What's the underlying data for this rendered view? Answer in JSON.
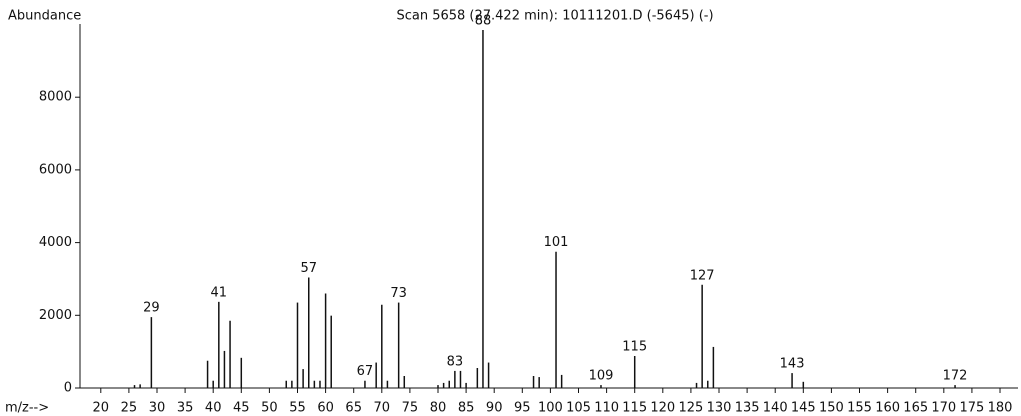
{
  "chart_data": {
    "type": "spectrum",
    "title": "Scan 5658 (27.422 min): 10111201.D (-5645) (-)",
    "y_label": "Abundance",
    "x_label": "m/z-->",
    "color": "#111111",
    "x": [
      26,
      27,
      29,
      39,
      40,
      41,
      42,
      43,
      45,
      53,
      54,
      55,
      56,
      57,
      58,
      59,
      60,
      61,
      67,
      69,
      70,
      71,
      73,
      74,
      80,
      81,
      82,
      83,
      84,
      85,
      87,
      88,
      89,
      97,
      98,
      101,
      102,
      109,
      115,
      126,
      127,
      128,
      129,
      143,
      145,
      172
    ],
    "values": [
      80,
      100,
      1950,
      750,
      200,
      2370,
      1020,
      1850,
      830,
      200,
      200,
      2350,
      520,
      3040,
      200,
      200,
      2600,
      1990,
      200,
      700,
      2290,
      200,
      2350,
      330,
      80,
      140,
      200,
      470,
      470,
      140,
      550,
      9850,
      700,
      330,
      300,
      3750,
      360,
      80,
      880,
      140,
      2840,
      200,
      1130,
      410,
      170,
      80
    ],
    "peak_labels": [
      29,
      41,
      57,
      67,
      73,
      83,
      88,
      101,
      109,
      115,
      127,
      143,
      172
    ],
    "xlim": [
      16.3,
      183.2
    ],
    "ylim": [
      0,
      10000
    ],
    "xticks": [
      20,
      25,
      30,
      35,
      40,
      45,
      50,
      55,
      60,
      65,
      70,
      75,
      80,
      85,
      90,
      95,
      100,
      105,
      110,
      115,
      120,
      125,
      130,
      135,
      140,
      145,
      150,
      155,
      160,
      165,
      170,
      175,
      180
    ],
    "yticks": [
      0,
      2000,
      4000,
      6000,
      8000
    ]
  }
}
